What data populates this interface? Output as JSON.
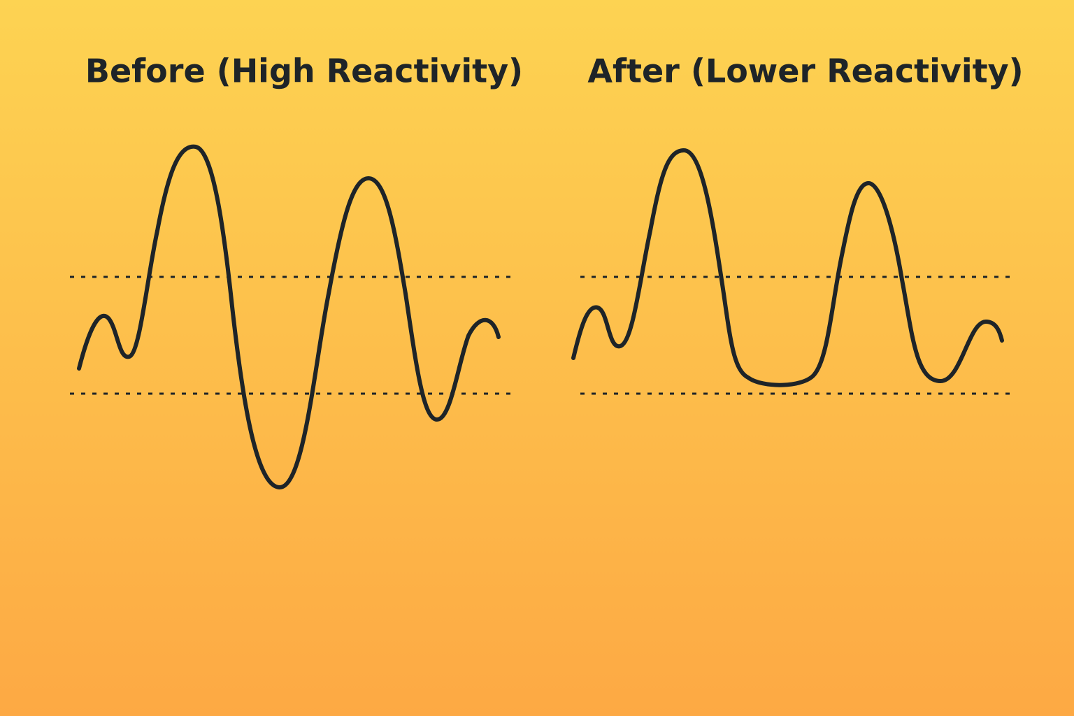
{
  "panels": [
    {
      "title": "Before (High Reactivity)"
    },
    {
      "title": "After (Lower Reactivity)"
    }
  ]
}
